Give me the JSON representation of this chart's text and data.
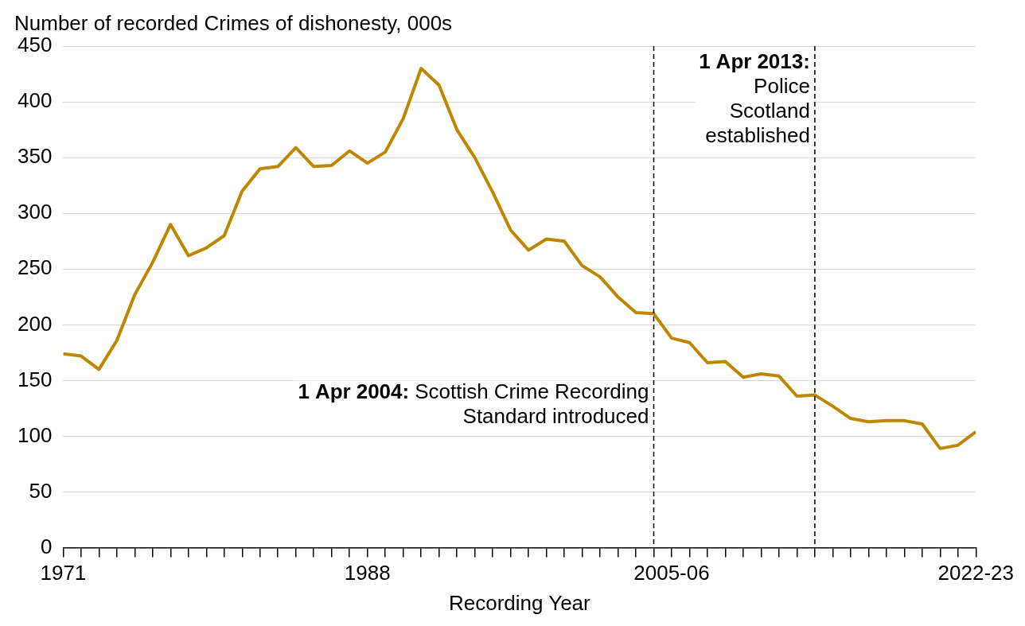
{
  "chart_data": {
    "type": "line",
    "ylabel": "Number of recorded Crimes of dishonesty, 000s",
    "xlabel": "Recording Year",
    "x": [
      1971,
      1972,
      1973,
      1974,
      1975,
      1976,
      1977,
      1978,
      1979,
      1980,
      1981,
      1982,
      1983,
      1984,
      1985,
      1986,
      1987,
      1988,
      1989,
      1990,
      1991,
      1992,
      1993,
      1994,
      1995,
      1996,
      1997,
      1998,
      1999,
      2000,
      2001,
      2002,
      2003,
      2004,
      2005,
      2006,
      2007,
      2008,
      2009,
      2010,
      2011,
      2012,
      2013,
      2014,
      2015,
      2016,
      2017,
      2018,
      2019,
      2020,
      2021,
      2022
    ],
    "series": [
      {
        "color": "#bf8700",
        "values": [
          174,
          172,
          160,
          186,
          227,
          256,
          290,
          262,
          269,
          280,
          320,
          340,
          342,
          359,
          342,
          343,
          356,
          345,
          355,
          385,
          430,
          415,
          375,
          350,
          319,
          285,
          267,
          277,
          275,
          253,
          243,
          225,
          211,
          210,
          188,
          184,
          166,
          167,
          153,
          156,
          154,
          136,
          137,
          127,
          116,
          113,
          114,
          114,
          111,
          89,
          92,
          104
        ]
      }
    ],
    "xlim": [
      1971,
      2022
    ],
    "xticks": [
      {
        "value": 1971,
        "label": "1971"
      },
      {
        "value": 1972,
        "label": null
      },
      {
        "value": 1973,
        "label": null
      },
      {
        "value": 1974,
        "label": null
      },
      {
        "value": 1975,
        "label": null
      },
      {
        "value": 1976,
        "label": null
      },
      {
        "value": 1977,
        "label": null
      },
      {
        "value": 1978,
        "label": null
      },
      {
        "value": 1979,
        "label": null
      },
      {
        "value": 1980,
        "label": null
      },
      {
        "value": 1981,
        "label": null
      },
      {
        "value": 1982,
        "label": null
      },
      {
        "value": 1983,
        "label": null
      },
      {
        "value": 1984,
        "label": null
      },
      {
        "value": 1985,
        "label": null
      },
      {
        "value": 1986,
        "label": null
      },
      {
        "value": 1987,
        "label": null
      },
      {
        "value": 1988,
        "label": "1988"
      },
      {
        "value": 1989,
        "label": null
      },
      {
        "value": 1990,
        "label": null
      },
      {
        "value": 1991,
        "label": null
      },
      {
        "value": 1992,
        "label": null
      },
      {
        "value": 1993,
        "label": null
      },
      {
        "value": 1994,
        "label": null
      },
      {
        "value": 1995,
        "label": null
      },
      {
        "value": 1996,
        "label": null
      },
      {
        "value": 1997,
        "label": null
      },
      {
        "value": 1998,
        "label": null
      },
      {
        "value": 1999,
        "label": null
      },
      {
        "value": 2000,
        "label": null
      },
      {
        "value": 2001,
        "label": null
      },
      {
        "value": 2002,
        "label": null
      },
      {
        "value": 2003,
        "label": null
      },
      {
        "value": 2004,
        "label": null
      },
      {
        "value": 2005,
        "label": "2005-06"
      },
      {
        "value": 2006,
        "label": null
      },
      {
        "value": 2007,
        "label": null
      },
      {
        "value": 2008,
        "label": null
      },
      {
        "value": 2009,
        "label": null
      },
      {
        "value": 2010,
        "label": null
      },
      {
        "value": 2011,
        "label": null
      },
      {
        "value": 2012,
        "label": null
      },
      {
        "value": 2013,
        "label": null
      },
      {
        "value": 2014,
        "label": null
      },
      {
        "value": 2015,
        "label": null
      },
      {
        "value": 2016,
        "label": null
      },
      {
        "value": 2017,
        "label": null
      },
      {
        "value": 2018,
        "label": null
      },
      {
        "value": 2019,
        "label": null
      },
      {
        "value": 2020,
        "label": null
      },
      {
        "value": 2021,
        "label": null
      },
      {
        "value": 2022,
        "label": "2022-23"
      }
    ],
    "ylim": [
      0,
      450
    ],
    "yticks": [
      0,
      50,
      100,
      150,
      200,
      250,
      300,
      350,
      400,
      450
    ],
    "grid": "y",
    "legend": false,
    "marker": "none",
    "line_style": "solid",
    "ref_lines": [
      {
        "axis": "x",
        "value": 2004,
        "label": "1 Apr 2004: Scottish Crime Recording Standard introduced",
        "color": "#000000",
        "line_style": "dashed"
      },
      {
        "axis": "x",
        "value": 2013,
        "label": "1 Apr 2013: Police Scotland established",
        "color": "#000000",
        "line_style": "dashed"
      }
    ]
  }
}
